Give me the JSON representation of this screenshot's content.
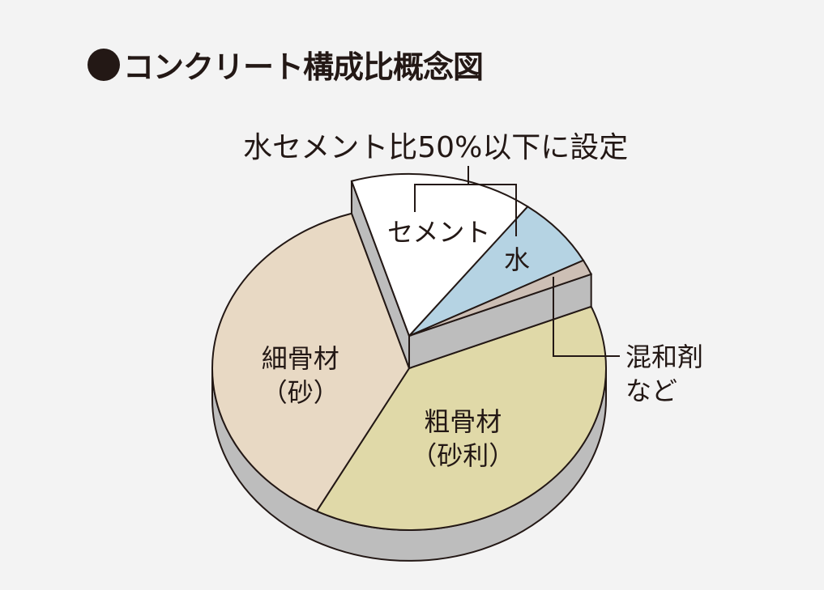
{
  "title": "コンクリート構成比概念図",
  "annotation": "水セメント比50%以下に設定",
  "chart_data": {
    "type": "pie",
    "style": "3d-exploded",
    "title": "コンクリート構成比概念図",
    "slices": [
      {
        "label": "セメント",
        "value": 15,
        "color": "#ffffff",
        "raised": true
      },
      {
        "label": "水",
        "value": 7,
        "color": "#b5d3e3",
        "raised": true
      },
      {
        "label": "混和剤など",
        "value": 1.5,
        "color": "#cdbfb5",
        "raised": true
      },
      {
        "label": "粗骨材（砂利）",
        "value": 39,
        "color": "#e0d9a8",
        "raised": false
      },
      {
        "label": "細骨材（砂）",
        "value": 37.5,
        "color": "#e8d9c4",
        "raised": false
      }
    ],
    "side_color": "#bdbdbd"
  },
  "labels": {
    "cement": "セメント",
    "water": "水",
    "admix_1": "混和剤",
    "admix_2": "など",
    "coarse_1": "粗骨材",
    "coarse_2": "（砂利）",
    "fine_1": "細骨材",
    "fine_2": "（砂）"
  }
}
